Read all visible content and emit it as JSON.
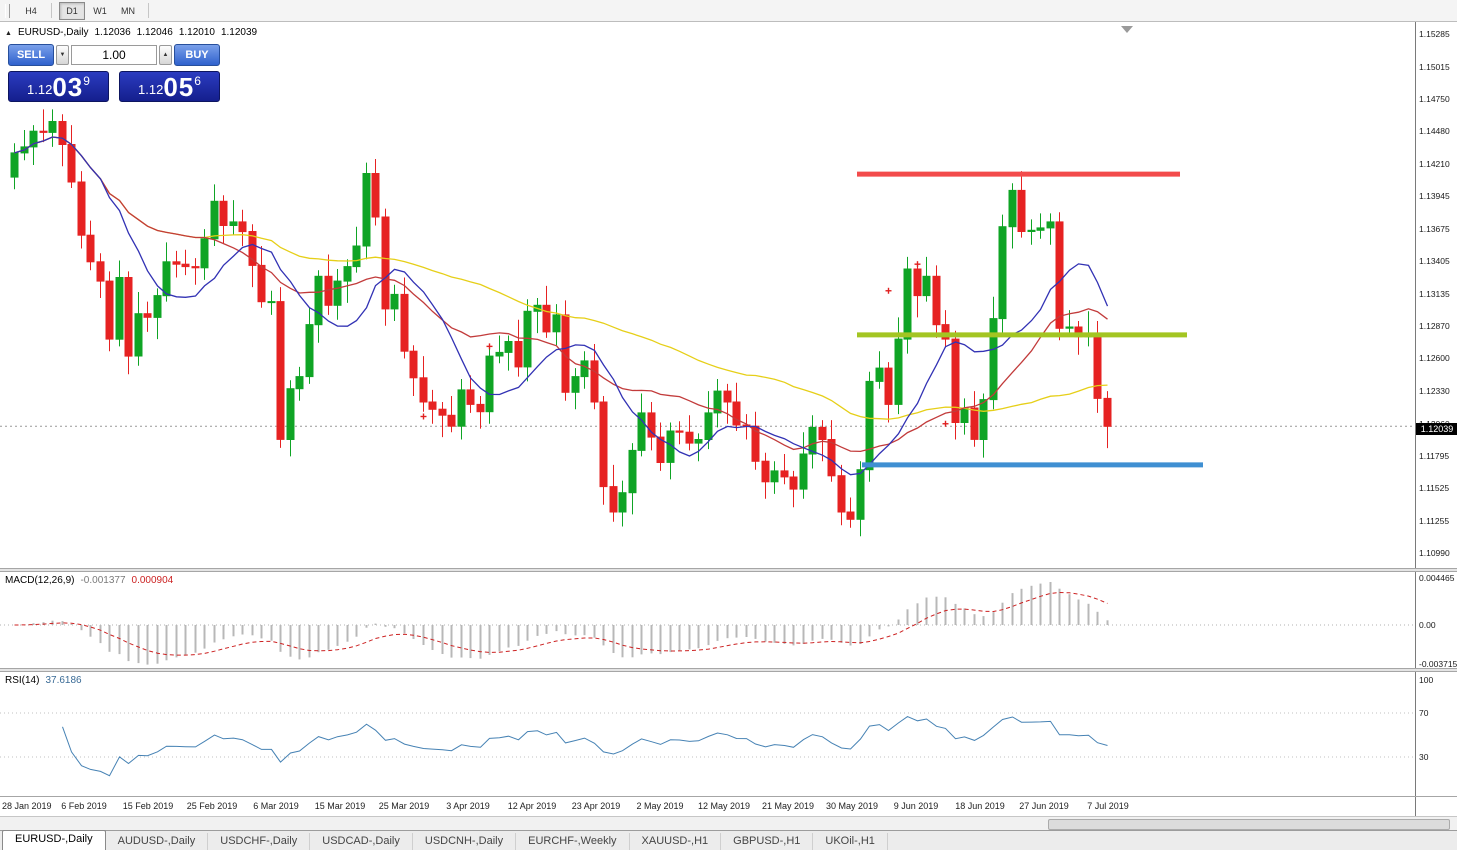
{
  "toolbar": {
    "timeframes": [
      {
        "label": "H4",
        "active": false
      },
      {
        "label": "D1",
        "active": true
      },
      {
        "label": "W1",
        "active": false
      },
      {
        "label": "MN",
        "active": false
      }
    ]
  },
  "chart_header": {
    "title": "EURUSD-,Daily",
    "open": "1.12036",
    "high": "1.12046",
    "low": "1.12010",
    "close": "1.12039"
  },
  "trade_panel": {
    "sell_label": "SELL",
    "buy_label": "BUY",
    "volume": "1.00",
    "bid": {
      "prefix": "1.12",
      "pips": "03",
      "fraction": "9"
    },
    "ask": {
      "prefix": "1.12",
      "pips": "05",
      "fraction": "6"
    }
  },
  "price_axis": {
    "labels": [
      "1.15285",
      "1.15015",
      "1.14750",
      "1.14480",
      "1.14210",
      "1.13945",
      "1.13675",
      "1.13405",
      "1.13135",
      "1.12870",
      "1.12600",
      "1.12330",
      "1.12060",
      "1.11795",
      "1.11525",
      "1.11255",
      "1.10990"
    ],
    "current_price": "1.12039"
  },
  "macd_panel": {
    "title": "MACD(12,26,9)",
    "main_value": "-0.001377",
    "signal_value": "0.000904",
    "axis_labels": [
      "0.004465",
      "0.00",
      "-0.003715"
    ]
  },
  "rsi_panel": {
    "title": "RSI(14)",
    "value": "37.6186",
    "axis_labels": [
      "100",
      "70",
      "30"
    ]
  },
  "date_axis": [
    "28 Jan 2019",
    "6 Feb 2019",
    "15 Feb 2019",
    "25 Feb 2019",
    "6 Mar 2019",
    "15 Mar 2019",
    "25 Mar 2019",
    "3 Apr 2019",
    "12 Apr 2019",
    "23 Apr 2019",
    "2 May 2019",
    "12 May 2019",
    "21 May 2019",
    "30 May 2019",
    "9 Jun 2019",
    "18 Jun 2019",
    "27 Jun 2019",
    "7 Jul 2019"
  ],
  "tabs": [
    {
      "label": "EURUSD-,Daily",
      "active": true
    },
    {
      "label": "AUDUSD-,Daily",
      "active": false
    },
    {
      "label": "USDCHF-,Daily",
      "active": false
    },
    {
      "label": "USDCAD-,Daily",
      "active": false
    },
    {
      "label": "USDCNH-,Daily",
      "active": false
    },
    {
      "label": "EURCHF-,Weekly",
      "active": false
    },
    {
      "label": "XAUUSD-,H1",
      "active": false
    },
    {
      "label": "GBPUSD-,H1",
      "active": false
    },
    {
      "label": "UKOil-,H1",
      "active": false
    }
  ],
  "chart_data": {
    "type": "candlestick",
    "symbol": "EURUSD-",
    "timeframe": "Daily",
    "title": "EURUSD-,Daily",
    "y_range": [
      1.109,
      1.1535
    ],
    "first_open": 1.141,
    "closes": [
      1.143,
      1.1435,
      1.1448,
      1.1447,
      1.1456,
      1.1437,
      1.1406,
      1.1362,
      1.134,
      1.1324,
      1.1276,
      1.1327,
      1.1262,
      1.1297,
      1.1294,
      1.1312,
      1.134,
      1.1338,
      1.1336,
      1.1335,
      1.1359,
      1.139,
      1.137,
      1.1373,
      1.1365,
      1.1337,
      1.1307,
      1.1307,
      1.1193,
      1.1235,
      1.1245,
      1.1288,
      1.1328,
      1.1304,
      1.1324,
      1.1336,
      1.1353,
      1.1413,
      1.1377,
      1.1301,
      1.1313,
      1.1266,
      1.1244,
      1.1224,
      1.1218,
      1.1213,
      1.1204,
      1.1234,
      1.1222,
      1.1216,
      1.1262,
      1.1265,
      1.1274,
      1.1253,
      1.1299,
      1.1304,
      1.1282,
      1.1296,
      1.1232,
      1.1245,
      1.1258,
      1.1224,
      1.1154,
      1.1133,
      1.1149,
      1.1184,
      1.1215,
      1.1195,
      1.1174,
      1.12,
      1.1199,
      1.119,
      1.1193,
      1.1215,
      1.1233,
      1.1224,
      1.1205,
      1.1204,
      1.1175,
      1.1158,
      1.1167,
      1.1162,
      1.1152,
      1.1181,
      1.1203,
      1.1193,
      1.1163,
      1.1133,
      1.1127,
      1.1168,
      1.1241,
      1.1252,
      1.1222,
      1.1276,
      1.1334,
      1.1312,
      1.1328,
      1.1288,
      1.1276,
      1.1207,
      1.1219,
      1.1193,
      1.1226,
      1.1293,
      1.1369,
      1.1399,
      1.1365,
      1.1366,
      1.1368,
      1.1373,
      1.1285,
      1.1286,
      1.1278,
      1.1281,
      1.1227,
      1.12039
    ],
    "wick_pattern": [
      [
        8,
        10
      ],
      [
        14,
        6
      ],
      [
        5,
        15
      ],
      [
        18,
        8
      ],
      [
        10,
        12
      ],
      [
        6,
        18
      ],
      [
        16,
        5
      ],
      [
        9,
        11
      ],
      [
        12,
        7
      ],
      [
        7,
        14
      ]
    ],
    "colors": {
      "up": "#0fa425",
      "down": "#e62222",
      "macd_hist": "#b8b8b8",
      "macd_signal": "#cc2222",
      "rsi": "#4682b4",
      "level_dotted": "#c0c0c0",
      "last_price_line": "#999999"
    },
    "moving_averages": [
      {
        "period": 10,
        "color": "#3232b4"
      },
      {
        "period": 21,
        "color": "#c23b3b"
      },
      {
        "period": 50,
        "color": "#e6cf18"
      }
    ],
    "hlines": [
      {
        "name": "resistance-red",
        "price": 1.14125,
        "color": "#f34b4b",
        "x1": 0.606,
        "x2": 0.834,
        "thickness": 5
      },
      {
        "name": "mid-olive",
        "price": 1.12795,
        "color": "#a3c522",
        "x1": 0.606,
        "x2": 0.839,
        "thickness": 5
      },
      {
        "name": "support-blue",
        "price": 1.1172,
        "color": "#3f8fd2",
        "x1": 0.609,
        "x2": 0.85,
        "thickness": 5
      }
    ],
    "markers": [
      {
        "index": 43,
        "price": 1.1212
      },
      {
        "index": 50,
        "price": 1.127
      },
      {
        "index": 92,
        "price": 1.1316
      },
      {
        "index": 95,
        "price": 1.1338
      },
      {
        "index": 98,
        "price": 1.1206
      }
    ],
    "last_price": 1.12039,
    "indicators": {
      "macd": {
        "fast": 12,
        "slow": 26,
        "signal": 9,
        "scale_max": 0.004465,
        "scale_min": -0.003715,
        "last_main": -0.001377,
        "last_signal": 0.000904
      },
      "rsi": {
        "period": 14,
        "levels": [
          70,
          30
        ],
        "last_value": 37.6186
      }
    }
  }
}
